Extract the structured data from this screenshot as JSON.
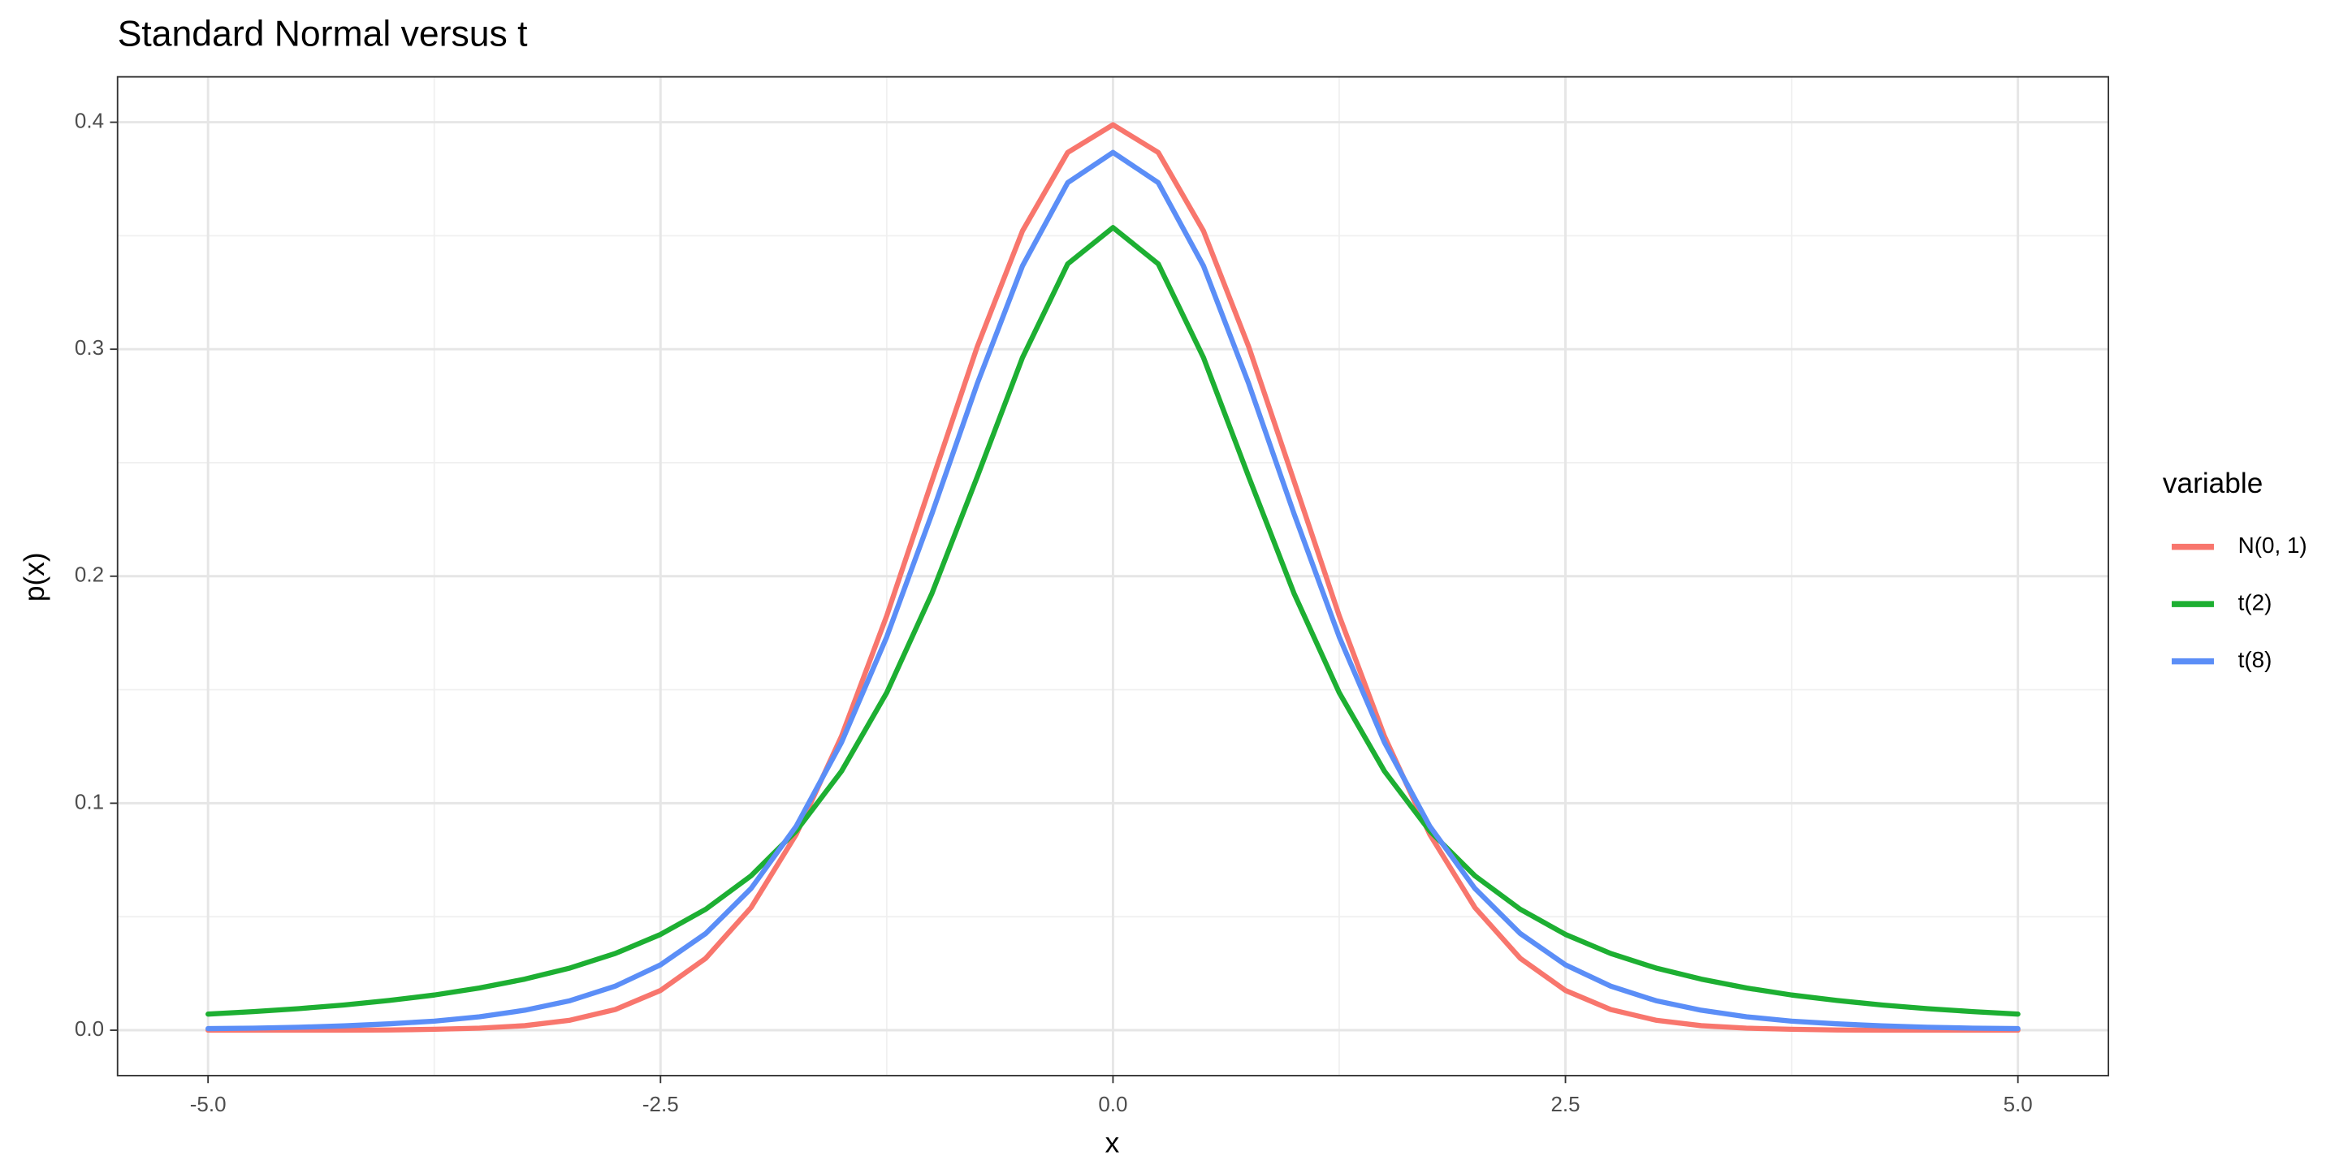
{
  "chart_data": {
    "type": "line",
    "title": "Standard Normal versus t",
    "x_label": "x",
    "y_label": "p(x)",
    "legend_title": "variable",
    "legend_position": "right",
    "grid": true,
    "xlim": [
      -5.5,
      5.5
    ],
    "ylim": [
      -0.02,
      0.42
    ],
    "xticks": [
      {
        "value": -5,
        "label": "-5.0"
      },
      -2.5,
      {
        "value": 0,
        "label": "0.0"
      },
      2.5,
      {
        "value": 5,
        "label": "5.0"
      }
    ],
    "yticks": [
      {
        "value": 0,
        "label": "0.0"
      },
      0.1,
      0.2,
      0.3,
      0.4
    ],
    "x": [
      -5,
      -4.75,
      -4.5,
      -4.25,
      -4,
      -3.75,
      -3.5,
      -3.25,
      -3,
      -2.75,
      -2.5,
      -2.25,
      -2,
      -1.75,
      -1.5,
      -1.25,
      -1,
      -0.75,
      -0.5,
      -0.25,
      0,
      0.25,
      0.5,
      0.75,
      1,
      1.25,
      1.5,
      1.75,
      2,
      2.25,
      2.5,
      2.75,
      3,
      3.25,
      3.5,
      3.75,
      4,
      4.25,
      4.5,
      4.75,
      5
    ],
    "series": [
      {
        "name": "N(0, 1)",
        "color": "#F8766D",
        "values": [
          0.0,
          0.0,
          0.0,
          0.0,
          0.0001,
          0.0004,
          0.0009,
          0.002,
          0.0044,
          0.0091,
          0.0175,
          0.0317,
          0.054,
          0.0863,
          0.1295,
          0.1826,
          0.242,
          0.3011,
          0.3521,
          0.3867,
          0.3989,
          0.3867,
          0.3521,
          0.3011,
          0.242,
          0.1826,
          0.1295,
          0.0863,
          0.054,
          0.0317,
          0.0175,
          0.0091,
          0.0044,
          0.002,
          0.0009,
          0.0004,
          0.0001,
          0.0,
          0.0,
          0.0,
          0.0
        ]
      },
      {
        "name": "t(2)",
        "color": "#1DAF32",
        "values": [
          0.0071,
          0.0082,
          0.0095,
          0.0111,
          0.0131,
          0.0155,
          0.0186,
          0.0225,
          0.0274,
          0.0338,
          0.0422,
          0.0533,
          0.068,
          0.0878,
          0.1141,
          0.1487,
          0.1925,
          0.2438,
          0.2963,
          0.3376,
          0.3536,
          0.3376,
          0.2963,
          0.2438,
          0.1925,
          0.1487,
          0.1141,
          0.0878,
          0.068,
          0.0533,
          0.0422,
          0.0338,
          0.0274,
          0.0225,
          0.0186,
          0.0155,
          0.0131,
          0.0111,
          0.0095,
          0.0082,
          0.0071
        ]
      },
      {
        "name": "t(8)",
        "color": "#5B8EF7",
        "values": [
          0.0007,
          0.0009,
          0.0013,
          0.0019,
          0.0028,
          0.004,
          0.0059,
          0.0088,
          0.013,
          0.0194,
          0.0288,
          0.0426,
          0.0624,
          0.0899,
          0.1268,
          0.1733,
          0.2276,
          0.2848,
          0.3367,
          0.3734,
          0.3867,
          0.3734,
          0.3367,
          0.2848,
          0.2276,
          0.1733,
          0.1268,
          0.0899,
          0.0624,
          0.0426,
          0.0288,
          0.0194,
          0.013,
          0.0088,
          0.0059,
          0.004,
          0.0028,
          0.0019,
          0.0013,
          0.0009,
          0.0007
        ]
      }
    ]
  }
}
